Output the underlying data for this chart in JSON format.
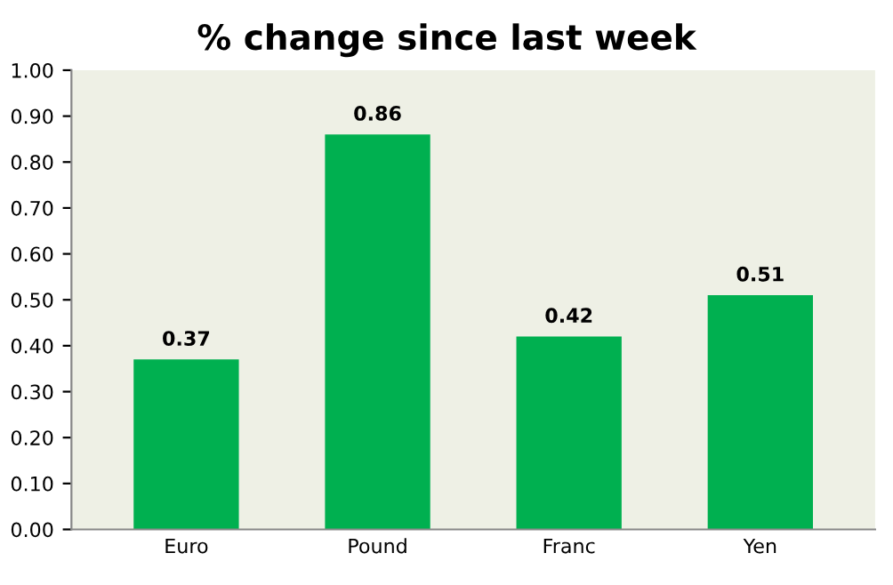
{
  "chart_data": {
    "type": "bar",
    "title": "% change since last week",
    "categories": [
      "Euro",
      "Pound",
      "Franc",
      "Yen"
    ],
    "values": [
      0.37,
      0.86,
      0.42,
      0.51
    ],
    "color": "#00b050",
    "data_labels": true,
    "grid": false,
    "ylim": [
      0,
      1
    ],
    "yticks": [
      {
        "value": 0,
        "label": "0.00"
      },
      {
        "value": 0.1,
        "label": "0.10"
      },
      {
        "value": 0.2,
        "label": "0.20"
      },
      {
        "value": 0.3,
        "label": "0.30"
      },
      {
        "value": 0.4,
        "label": "0.40"
      },
      {
        "value": 0.5,
        "label": "0.50"
      },
      {
        "value": 0.6,
        "label": "0.60"
      },
      {
        "value": 0.7,
        "label": "0.70"
      },
      {
        "value": 0.8,
        "label": "0.80"
      },
      {
        "value": 0.9,
        "label": "0.90"
      },
      {
        "value": 1,
        "label": "1.00"
      }
    ]
  }
}
